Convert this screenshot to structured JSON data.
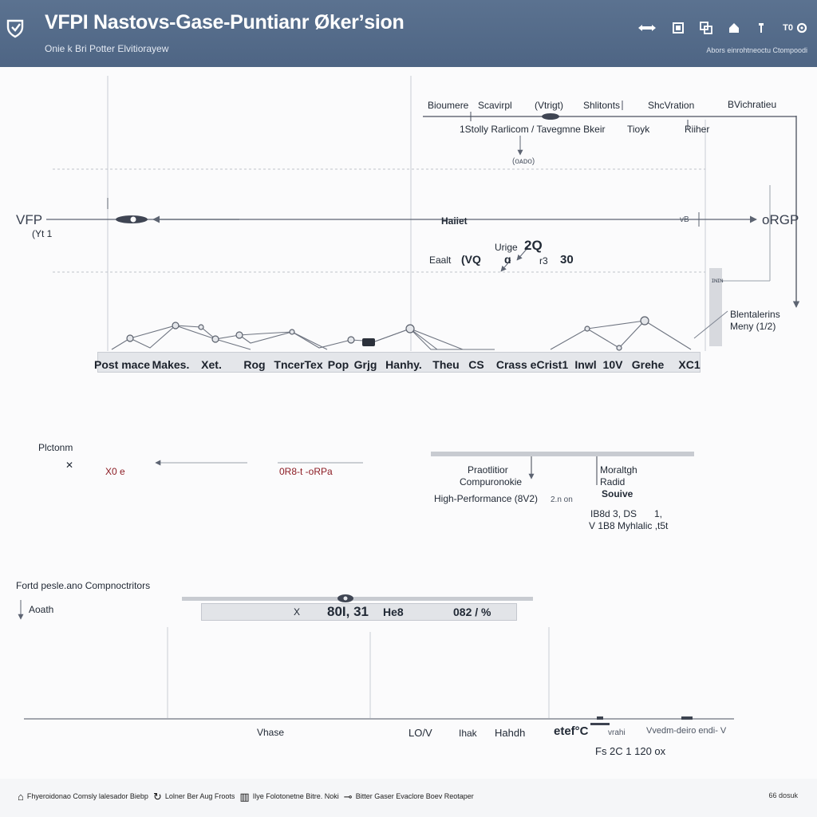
{
  "header": {
    "title": "VFPI Nastovs-Gase-Puntianr Økerʼsion",
    "subtitle": "Onie k Bri Potter Elvitiorayew",
    "toolbar": [
      {
        "label": "",
        "icon": "pan-icon"
      },
      {
        "label": "",
        "icon": "frame-icon"
      },
      {
        "label": "",
        "icon": "layers-icon"
      },
      {
        "label": "",
        "icon": "home-icon"
      },
      {
        "label": "",
        "icon": "pin-icon"
      },
      {
        "label": "T0",
        "icon": "settings-icon"
      }
    ],
    "status": "Abors einrohtneoctu Ctompoodi"
  },
  "top_section": {
    "labels": [
      "Bioumere",
      "Scavirpl",
      "(Vtrigt)",
      "Shlitonts",
      "ShcVration",
      "BVichratieu"
    ],
    "sublabels": [
      "1Stolly Rarlicom / Tavegmne Bkeir",
      "Tioyk",
      "Riiher"
    ],
    "small_note": "(ᴏᴀᴅᴏ)"
  },
  "axis": {
    "left_label": "VFP",
    "left_sub": "(Yt 1",
    "center_label": "Haiiet",
    "right_marker": "vB",
    "right_label": "oRGP"
  },
  "values": {
    "a_label": "Urige",
    "a_value": "2Q",
    "b_label": "Eaalt",
    "b_value": "(VQ",
    "c_value": "ɑ",
    "d_value": "r3",
    "e_value": "30",
    "side_tick": "ɪɴɪɴ"
  },
  "side_note": {
    "title": "Blentalerins",
    "subtitle": "Meny (1/2)"
  },
  "categories": [
    "Post mace",
    "Makes.",
    "Xet.",
    "Rog",
    "TncerTex",
    "Pop",
    "Grjg",
    "Hanhy.",
    "Theu",
    "CS",
    "Crass eCrist1",
    "Inwl",
    "10V",
    "Grehe",
    "XC1"
  ],
  "middle_section": {
    "title": "Plctonm",
    "marker": "✕",
    "left_range": "X0 e",
    "right_range": "0R8-t -oRPa",
    "branch_a": "Praotlitior",
    "branch_a2": "Compuronokie",
    "branch_a3": "High-Performance (8V2)",
    "branch_a4": "2.n on",
    "branch_b": "Moraltgh",
    "branch_b2": "Radid",
    "branch_b3": "Souive",
    "branch_b4": "IB8d 3, DS",
    "branch_b5": "V 1B8 Myhlalic ,t5t",
    "branch_b6": "1,"
  },
  "bottom_section": {
    "title": "Fortd pesle.ano Compnoctritors",
    "axis_label": "Aoath",
    "marker": "X",
    "value_main": "80I, 31",
    "value_unit": "He8",
    "value_right": "082 / %",
    "x_labels": [
      "Vhase",
      "LO/V",
      "Ihak",
      "Hahdh",
      "etef°C",
      "vrahi",
      "Vvedm-deiro endi- V"
    ],
    "readout": "Fs 2C 1 120 ox"
  },
  "footer": {
    "legend": [
      {
        "icon": "home-icon",
        "label": "Fhyeroidonao Comsly lalesador Biebp"
      },
      {
        "icon": "refresh-icon",
        "label": "Lolner Ber Aug Froots"
      },
      {
        "icon": "grid-icon",
        "label": "Ilye Folotonetne Bitre. Noki"
      },
      {
        "icon": "link-icon",
        "label": "Bitter Gaser Evaclore Boev Reotaper"
      }
    ],
    "right": "66 dosuk"
  }
}
